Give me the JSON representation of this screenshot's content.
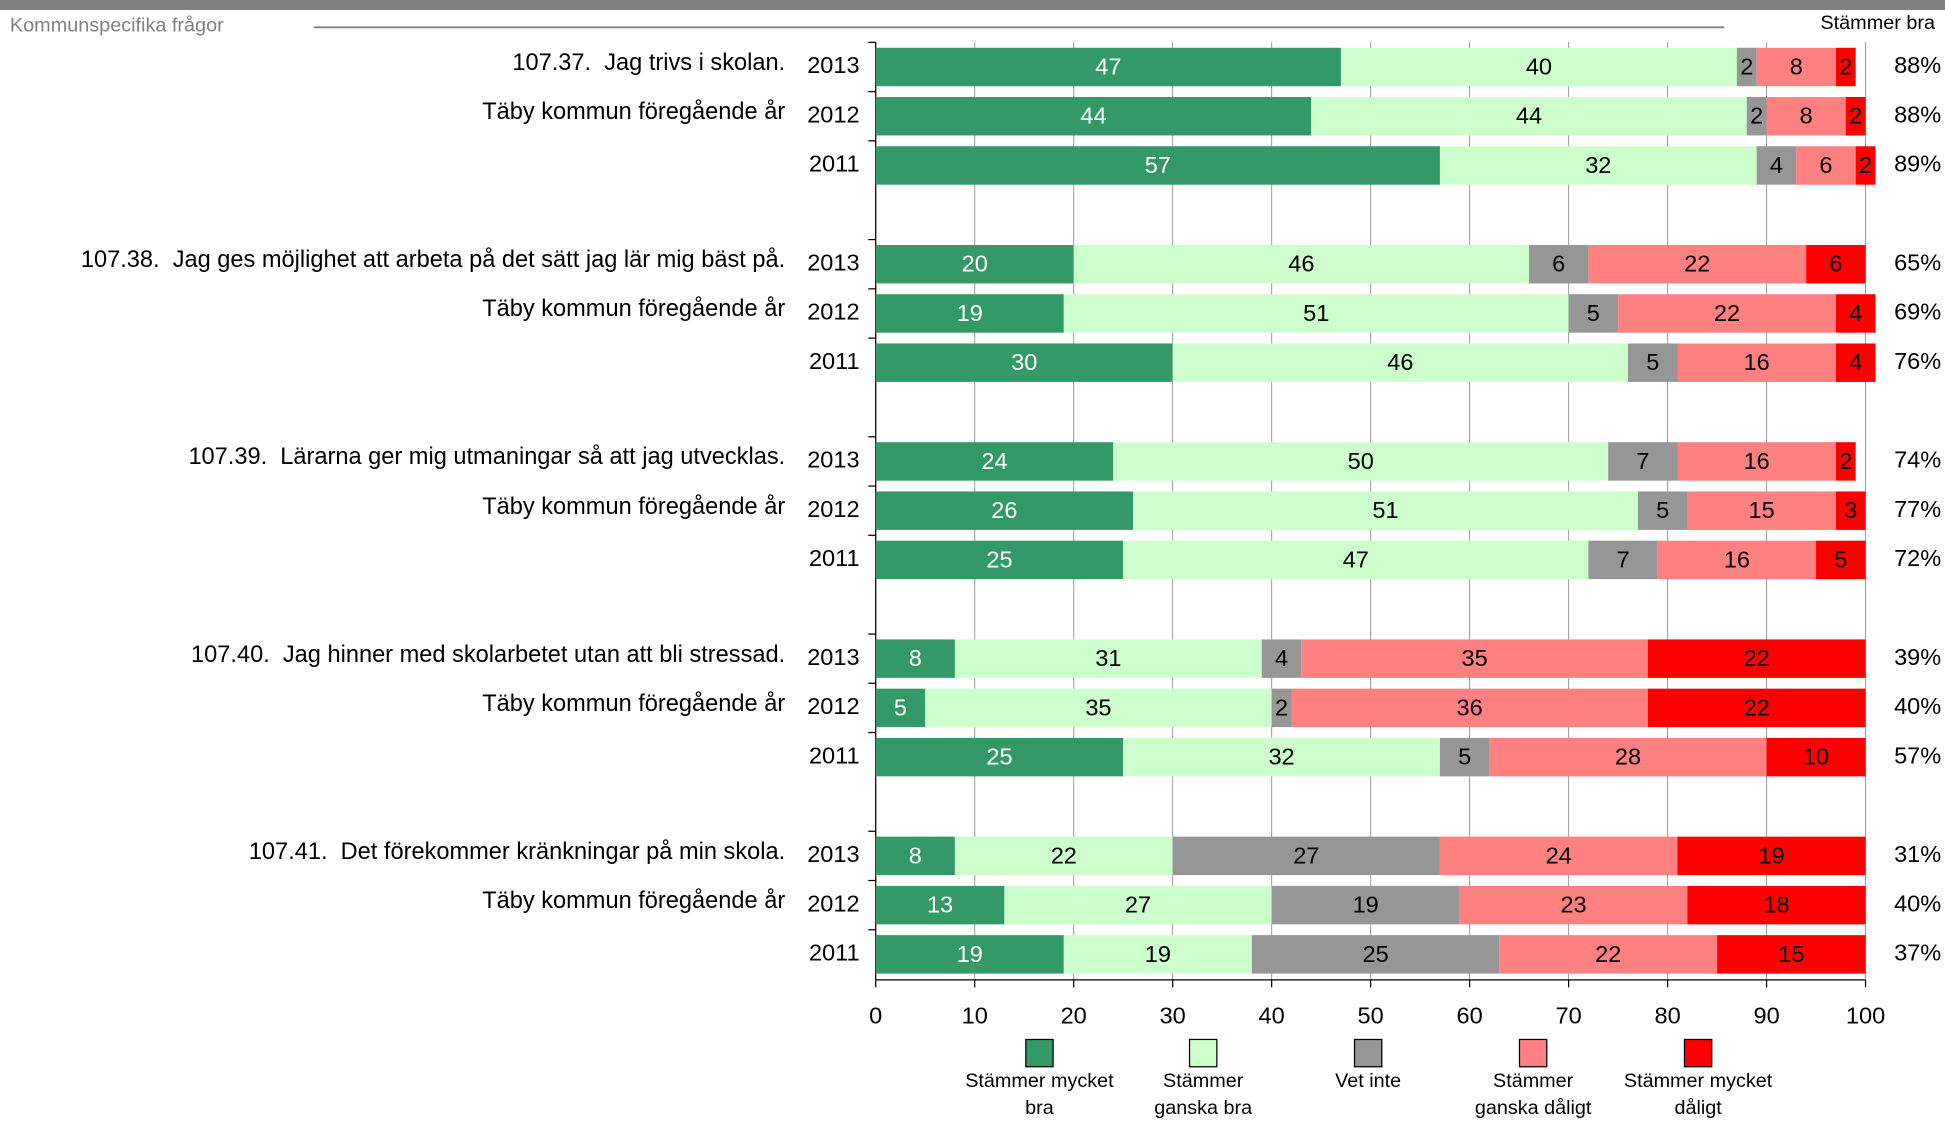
{
  "chart_data": {
    "type": "stacked-bar-horizontal",
    "section_title": "Kommunspecifika frågor",
    "right_header": "Stämmer bra",
    "categories": [
      "107.37.  Jag trivs i skolan.",
      "Täby kommun föregående år",
      null,
      "107.38.  Jag ges möjlighet att arbeta på det sätt jag lär mig bäst på.",
      "Täby kommun föregående år",
      null,
      "107.39.  Lärarna ger mig utmaningar så att jag utvecklas.",
      "Täby kommun föregående år",
      null,
      "107.40.  Jag hinner med skolarbetet utan att bli stressad.",
      "Täby kommun föregående år",
      null,
      "107.41.  Det förekommer kränkningar på min skola.",
      "Täby kommun föregående år",
      null
    ],
    "years": [
      "2013",
      "2012",
      "2011",
      "2013",
      "2012",
      "2011",
      "2013",
      "2012",
      "2011",
      "2013",
      "2012",
      "2011",
      "2013",
      "2012",
      "2011"
    ],
    "series": [
      {
        "name": "Stämmer mycket bra",
        "color": "#339966",
        "label_color": "#ffffff",
        "values": [
          47,
          44,
          57,
          20,
          19,
          30,
          24,
          26,
          25,
          8,
          5,
          25,
          8,
          13,
          19
        ]
      },
      {
        "name": "Stämmer ganska bra",
        "color": "#ccffcc",
        "label_color": "#000000",
        "values": [
          40,
          44,
          32,
          46,
          51,
          46,
          50,
          51,
          47,
          31,
          35,
          32,
          22,
          27,
          19
        ]
      },
      {
        "name": "Vet inte",
        "color": "#969696",
        "label_color": "#000000",
        "values": [
          2,
          2,
          4,
          6,
          5,
          5,
          7,
          5,
          7,
          4,
          2,
          5,
          27,
          19,
          25
        ]
      },
      {
        "name": "Stämmer ganska dåligt",
        "color": "#ff8080",
        "label_color": "#000000",
        "values": [
          8,
          8,
          6,
          22,
          22,
          16,
          16,
          15,
          16,
          35,
          36,
          28,
          24,
          23,
          22
        ]
      },
      {
        "name": "Stämmer mycket dåligt",
        "color": "#ff0000",
        "label_color": "#000000",
        "values": [
          2,
          2,
          2,
          6,
          4,
          4,
          2,
          3,
          5,
          22,
          22,
          10,
          19,
          18,
          15
        ]
      }
    ],
    "totals": {
      "values": [
        88,
        88,
        89,
        65,
        69,
        76,
        74,
        77,
        72,
        39,
        40,
        57,
        31,
        40,
        37
      ],
      "value_labels": [
        "88%",
        "88%",
        "89%",
        "65%",
        "69%",
        "76%",
        "74%",
        "77%",
        "72%",
        "39%",
        "40%",
        "57%",
        "31%",
        "40%",
        "37%"
      ]
    },
    "xlim": [
      0,
      100
    ],
    "xticks": [
      0,
      10,
      20,
      30,
      40,
      50,
      60,
      70,
      80,
      90,
      100
    ],
    "grid": true
  }
}
